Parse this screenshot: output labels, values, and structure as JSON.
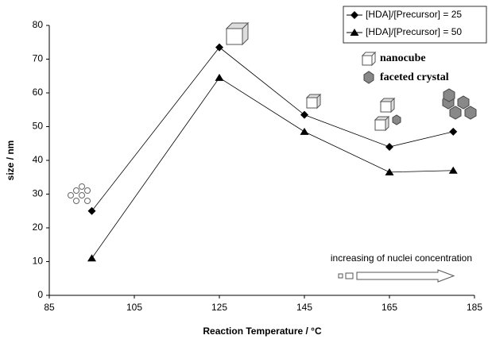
{
  "chart_data": {
    "type": "line",
    "xlabel": "Reaction Temperature / °C",
    "ylabel": "size / nm",
    "x": [
      95,
      125,
      145,
      165,
      180
    ],
    "series": [
      {
        "name": "[HDA]/[Precursor] = 25",
        "color": "#000000",
        "marker": "diamond",
        "values": [
          25,
          73.5,
          53.5,
          44,
          48.5
        ]
      },
      {
        "name": "[HDA]/[Precursor] = 50",
        "color": "#000000",
        "marker": "triangle",
        "values": [
          11,
          64.5,
          48.5,
          36.5,
          37
        ]
      }
    ],
    "xlim": [
      85,
      185
    ],
    "xticks": [
      85,
      105,
      125,
      145,
      165,
      185
    ],
    "ylim": [
      0,
      80
    ],
    "yticks": [
      0,
      10,
      20,
      30,
      40,
      50,
      60,
      70,
      80
    ],
    "grid": false,
    "legend": "upper right",
    "annotations": [
      "nanocube",
      "faceted crystal",
      "increasing of nuclei concentration"
    ]
  }
}
